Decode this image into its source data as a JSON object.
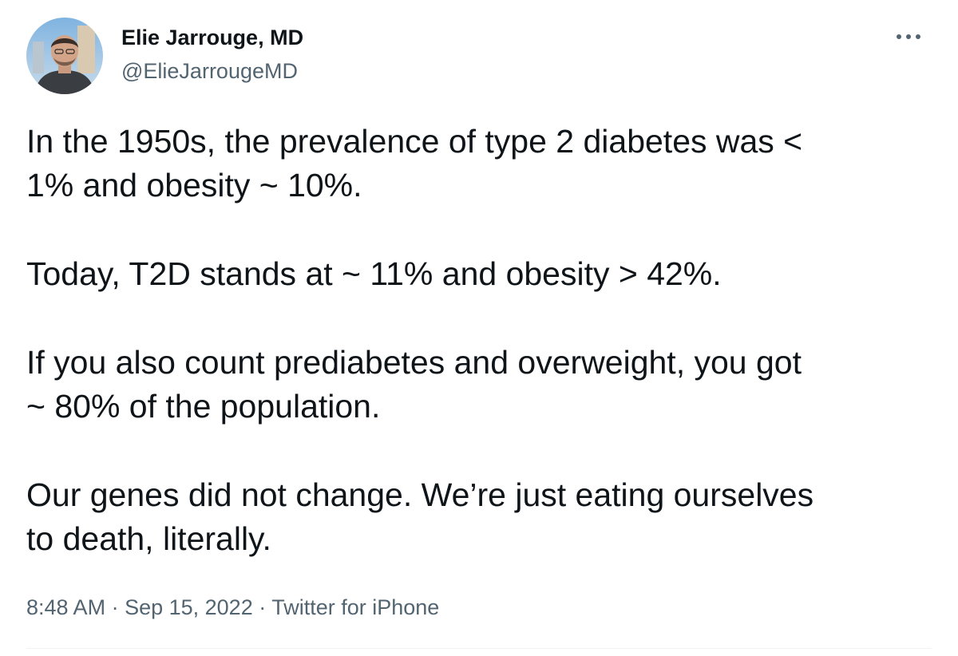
{
  "author": {
    "display_name": "Elie Jarrouge, MD",
    "handle": "@ElieJarrougeMD",
    "avatar_icon": "profile-photo"
  },
  "more_icon": "more-horizontal-icon",
  "tweet": {
    "paragraphs": [
      "In the 1950s, the prevalence of type 2 diabetes was <\n1% and obesity ~ 10%.",
      "Today, T2D stands at ~ 11% and obesity > 42%.",
      "If you also count prediabetes and overweight, you got\n~ 80% of the population.",
      "Our genes did not change. We’re just eating ourselves\nto death, literally."
    ]
  },
  "meta": {
    "time": "8:48 AM",
    "separator": " · ",
    "date": "Sep 15, 2022",
    "source": "Twitter for iPhone"
  },
  "colors": {
    "text": "#0f1419",
    "secondary": "#536471",
    "divider": "#eff3f4"
  }
}
